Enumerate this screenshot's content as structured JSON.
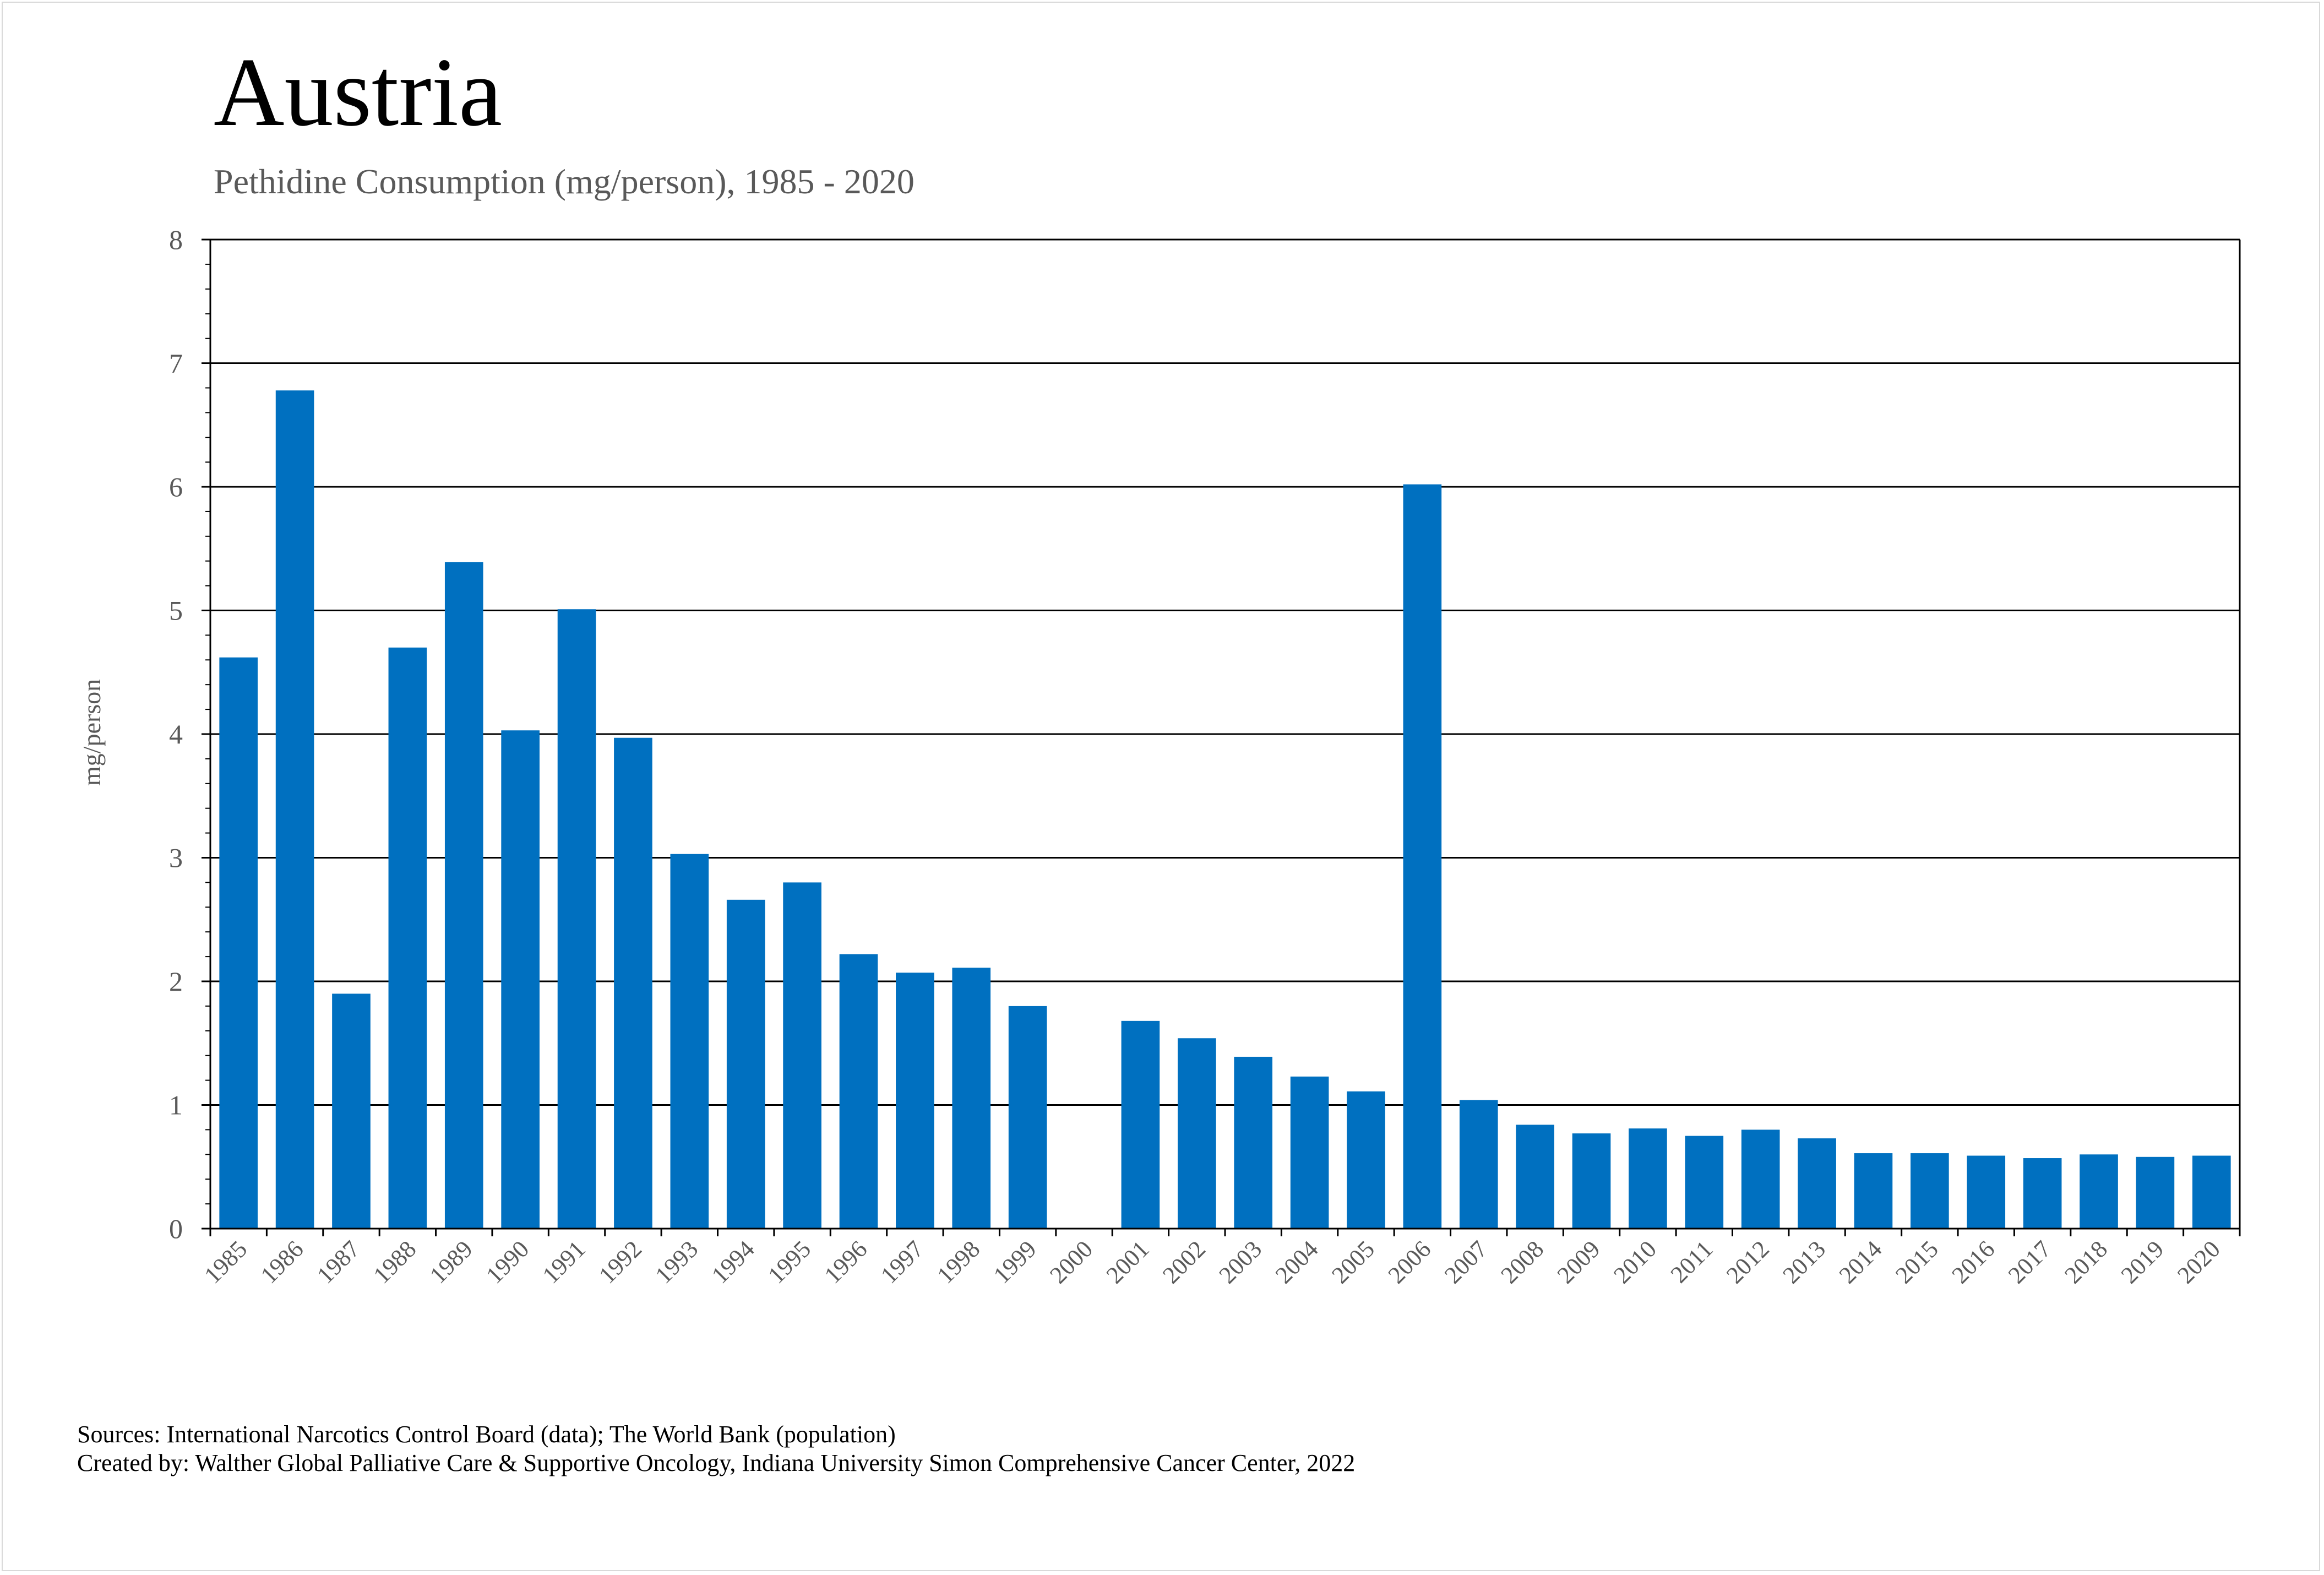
{
  "header": {
    "title": "Austria",
    "subtitle": "Pethidine Consumption (mg/person), 1985 - 2020"
  },
  "footer": {
    "sources": "Sources: International Narcotics Control Board (data); The World Bank (population)",
    "created_by": "Created by: Walther Global Palliative Care & Supportive Oncology, Indiana University Simon Comprehensive Cancer Center, 2022"
  },
  "colors": {
    "bar": "#0070C0",
    "gridline": "#000000",
    "axis_text": "#595959"
  },
  "chart_data": {
    "type": "bar",
    "title": "Austria",
    "subtitle": "Pethidine Consumption (mg/person), 1985 - 2020",
    "xlabel": "",
    "ylabel": "mg/person",
    "ylim": [
      0,
      8
    ],
    "yticks": [
      0,
      1,
      2,
      3,
      4,
      5,
      6,
      7,
      8
    ],
    "grid": true,
    "legend": "none",
    "categories": [
      "1985",
      "1986",
      "1987",
      "1988",
      "1989",
      "1990",
      "1991",
      "1992",
      "1993",
      "1994",
      "1995",
      "1996",
      "1997",
      "1998",
      "1999",
      "2000",
      "2001",
      "2002",
      "2003",
      "2004",
      "2005",
      "2006",
      "2007",
      "2008",
      "2009",
      "2010",
      "2011",
      "2012",
      "2013",
      "2014",
      "2015",
      "2016",
      "2017",
      "2018",
      "2019",
      "2020"
    ],
    "values": [
      4.62,
      6.78,
      1.9,
      4.7,
      5.39,
      4.03,
      5.01,
      3.97,
      3.03,
      2.66,
      2.8,
      2.22,
      2.07,
      2.11,
      1.8,
      0,
      1.68,
      1.54,
      1.39,
      1.23,
      1.11,
      6.02,
      1.04,
      0.84,
      0.77,
      0.81,
      0.75,
      0.8,
      0.73,
      0.61,
      0.61,
      0.59,
      0.57,
      0.6,
      0.58,
      0.59
    ]
  }
}
